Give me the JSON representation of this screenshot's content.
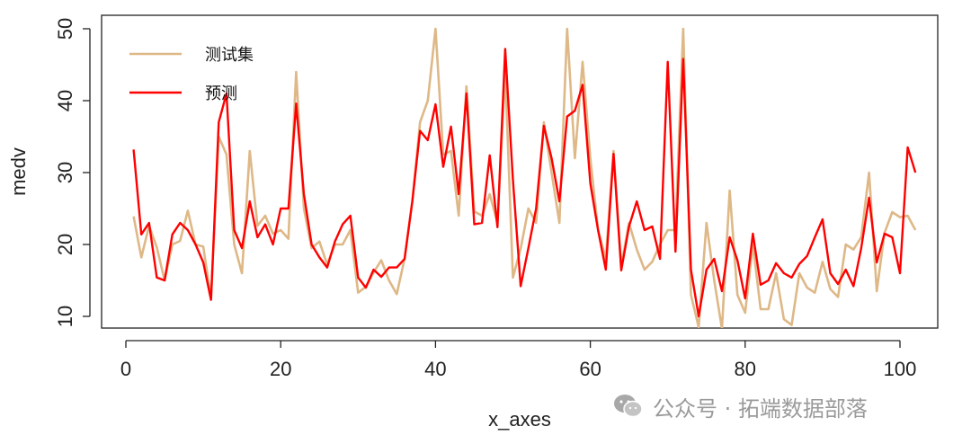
{
  "chart_data": {
    "type": "line",
    "xlabel": "x_axes",
    "ylabel": "medv",
    "xlim": [
      0,
      102
    ],
    "ylim": [
      10,
      50
    ],
    "xticks": [
      0,
      20,
      40,
      60,
      80,
      100
    ],
    "yticks": [
      10,
      20,
      30,
      40,
      50
    ],
    "grid": false,
    "legend_position": "top-left",
    "x": [
      1,
      2,
      3,
      4,
      5,
      6,
      7,
      8,
      9,
      10,
      11,
      12,
      13,
      14,
      15,
      16,
      17,
      18,
      19,
      20,
      21,
      22,
      23,
      24,
      25,
      26,
      27,
      28,
      29,
      30,
      31,
      32,
      33,
      34,
      35,
      36,
      37,
      38,
      39,
      40,
      41,
      42,
      43,
      44,
      45,
      46,
      47,
      48,
      49,
      50,
      51,
      52,
      53,
      54,
      55,
      56,
      57,
      58,
      59,
      60,
      61,
      62,
      63,
      64,
      65,
      66,
      67,
      68,
      69,
      70,
      71,
      72,
      73,
      74,
      75,
      76,
      77,
      78,
      79,
      80,
      81,
      82,
      83,
      84,
      85,
      86,
      87,
      88,
      89,
      90,
      91,
      92,
      93,
      94,
      95,
      96,
      97,
      98,
      99,
      100,
      101,
      102
    ],
    "series": [
      {
        "name": "测试集",
        "color": "#deb887",
        "values": [
          23.9,
          18.2,
          22.6,
          19.6,
          15.0,
          20.0,
          20.5,
          24.7,
          20.0,
          19.7,
          12.5,
          35.0,
          32.5,
          20.0,
          16.0,
          33.0,
          22.6,
          24.0,
          21.5,
          22.0,
          20.8,
          44.0,
          25.0,
          19.5,
          20.4,
          17.2,
          20.0,
          20.0,
          22.0,
          13.3,
          14.1,
          16.1,
          17.8,
          15.0,
          13.1,
          18.0,
          26.0,
          37.0,
          40.0,
          50.0,
          32.5,
          33.0,
          24.0,
          42.0,
          24.6,
          24.0,
          27.0,
          23.0,
          44.0,
          15.4,
          19.4,
          25.0,
          23.0,
          37.0,
          30.0,
          23.0,
          50.0,
          32.0,
          45.4,
          32.0,
          22.0,
          18.0,
          33.0,
          17.0,
          23.0,
          19.3,
          16.5,
          17.6,
          20.0,
          22.0,
          22.0,
          50.0,
          13.0,
          8.5,
          23.0,
          15.0,
          8.3,
          27.5,
          13.0,
          10.5,
          20.0,
          11.0,
          11.0,
          16.0,
          9.6,
          8.8,
          16.0,
          14.0,
          13.3,
          17.6,
          13.8,
          12.7,
          20.0,
          19.3,
          21.0,
          30.0,
          13.5,
          21.6,
          24.5,
          23.8,
          24.0,
          22.0
        ]
      },
      {
        "name": "预测",
        "color": "#ff0000",
        "values": [
          33.2,
          21.4,
          23.0,
          15.4,
          15.0,
          21.4,
          23.0,
          22.0,
          20.0,
          17.5,
          12.3,
          37.0,
          41.0,
          22.0,
          19.5,
          26.0,
          21.0,
          22.8,
          20.0,
          25.0,
          25.0,
          39.6,
          27.0,
          20.0,
          18.2,
          16.8,
          20.4,
          22.8,
          24.0,
          15.4,
          14.0,
          16.5,
          15.5,
          16.8,
          16.8,
          18.0,
          26.0,
          35.8,
          34.5,
          39.5,
          30.8,
          36.4,
          27.0,
          41.0,
          22.8,
          23.0,
          32.4,
          22.4,
          47.2,
          29.0,
          14.2,
          19.5,
          25.0,
          36.5,
          32.0,
          26.0,
          37.8,
          38.6,
          42.2,
          28.5,
          22.0,
          16.5,
          32.6,
          16.4,
          22.5,
          26.0,
          22.0,
          22.5,
          18.0,
          45.4,
          19.0,
          45.8,
          16.5,
          10.0,
          16.5,
          18.0,
          13.5,
          21.0,
          17.8,
          12.5,
          21.5,
          14.4,
          15.0,
          17.4,
          16.0,
          15.4,
          17.3,
          18.4,
          21.0,
          23.5,
          16.0,
          14.5,
          16.5,
          14.2,
          19.5,
          26.5,
          17.5,
          21.5,
          21.0,
          16.0,
          33.5,
          30.0
        ]
      }
    ]
  },
  "watermark": {
    "icon": "wechat-icon",
    "text": "公众号 · 拓端数据部落"
  }
}
